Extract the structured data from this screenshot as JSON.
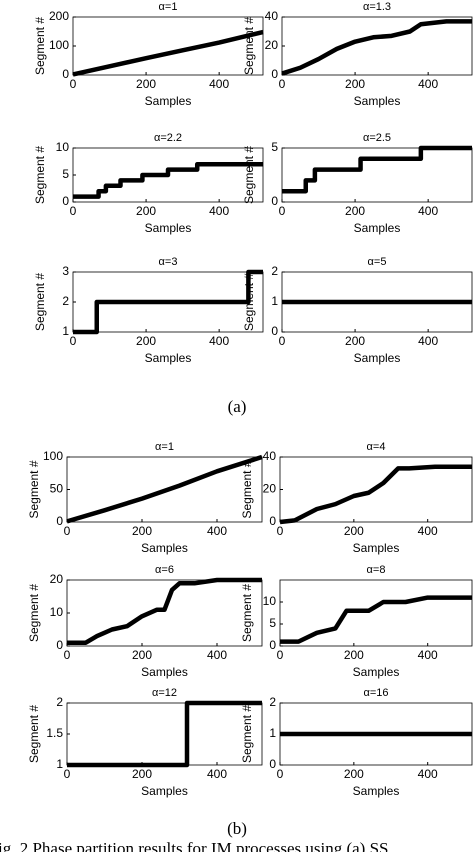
{
  "chart_data": [
    {
      "type": "line",
      "title": "α=1",
      "x_label": "Samples",
      "y_label": "Segment #",
      "xlim": [
        0,
        520
      ],
      "xticks": [
        0,
        200,
        400
      ],
      "ylim": [
        0,
        200
      ],
      "yticks": [
        0,
        100,
        200
      ],
      "color": "#000000",
      "x": [
        0,
        100,
        200,
        300,
        400,
        520
      ],
      "values": [
        2,
        30,
        58,
        85,
        112,
        148
      ]
    },
    {
      "type": "line",
      "title": "α=1.3",
      "x_label": "Samples",
      "y_label": "Segment #",
      "xlim": [
        0,
        520
      ],
      "xticks": [
        0,
        200,
        400
      ],
      "ylim": [
        0,
        40
      ],
      "yticks": [
        0,
        20,
        40
      ],
      "color": "#000000",
      "x": [
        0,
        50,
        100,
        150,
        200,
        250,
        300,
        350,
        380,
        450,
        520
      ],
      "values": [
        1,
        5,
        11,
        18,
        23,
        26,
        27,
        30,
        35,
        37,
        37
      ]
    },
    {
      "type": "line",
      "title": "α=2.2",
      "x_label": "Samples",
      "y_label": "Segment #",
      "xlim": [
        0,
        520
      ],
      "xticks": [
        0,
        200,
        400
      ],
      "ylim": [
        0,
        10
      ],
      "yticks": [
        0,
        5,
        10
      ],
      "color": "#000000",
      "x": [
        0,
        70,
        70,
        90,
        90,
        130,
        130,
        190,
        190,
        260,
        260,
        340,
        340,
        520
      ],
      "values": [
        1,
        1,
        2,
        2,
        3,
        3,
        4,
        4,
        5,
        5,
        6,
        6,
        7,
        7
      ]
    },
    {
      "type": "line",
      "title": "α=2.5",
      "x_label": "Samples",
      "y_label": "Segment #",
      "xlim": [
        0,
        520
      ],
      "xticks": [
        0,
        200,
        400
      ],
      "ylim": [
        0,
        5
      ],
      "yticks": [
        0,
        5
      ],
      "color": "#000000",
      "x": [
        0,
        65,
        65,
        90,
        90,
        215,
        215,
        380,
        380,
        520
      ],
      "values": [
        1,
        1,
        2,
        2,
        3,
        3,
        4,
        4,
        5,
        5
      ]
    },
    {
      "type": "line",
      "title": "α=3",
      "x_label": "Samples",
      "y_label": "Segment #",
      "xlim": [
        0,
        520
      ],
      "xticks": [
        0,
        200,
        400
      ],
      "ylim": [
        1,
        3
      ],
      "yticks": [
        1,
        2,
        3
      ],
      "color": "#000000",
      "x": [
        0,
        65,
        65,
        480,
        480,
        520
      ],
      "values": [
        1,
        1,
        2,
        2,
        3,
        3
      ]
    },
    {
      "type": "line",
      "title": "α=5",
      "x_label": "Samples",
      "y_label": "Segment #",
      "xlim": [
        0,
        520
      ],
      "xticks": [
        0,
        200,
        400
      ],
      "ylim": [
        0,
        2
      ],
      "yticks": [
        0,
        1,
        2
      ],
      "color": "#000000",
      "x": [
        0,
        520
      ],
      "values": [
        1,
        1
      ]
    },
    {
      "type": "line",
      "title": "α=1",
      "x_label": "Samples",
      "y_label": "Segment #",
      "xlim": [
        0,
        520
      ],
      "xticks": [
        0,
        200,
        400
      ],
      "ylim": [
        0,
        100
      ],
      "yticks": [
        0,
        50,
        100
      ],
      "color": "#000000",
      "x": [
        0,
        100,
        200,
        300,
        400,
        520
      ],
      "values": [
        1,
        18,
        36,
        56,
        78,
        100
      ]
    },
    {
      "type": "line",
      "title": "α=4",
      "x_label": "Samples",
      "y_label": "Segment #",
      "xlim": [
        0,
        520
      ],
      "xticks": [
        0,
        200,
        400
      ],
      "ylim": [
        0,
        40
      ],
      "yticks": [
        0,
        20,
        40
      ],
      "color": "#000000",
      "x": [
        0,
        40,
        100,
        150,
        200,
        240,
        280,
        320,
        350,
        420,
        520
      ],
      "values": [
        0,
        1,
        8,
        11,
        16,
        18,
        24,
        33,
        33,
        34,
        34
      ]
    },
    {
      "type": "line",
      "title": "α=6",
      "x_label": "Samples",
      "y_label": "Segment #",
      "xlim": [
        0,
        520
      ],
      "xticks": [
        0,
        200,
        400
      ],
      "ylim": [
        0,
        20
      ],
      "yticks": [
        0,
        10,
        20
      ],
      "color": "#000000",
      "x": [
        0,
        50,
        80,
        120,
        160,
        200,
        240,
        260,
        280,
        300,
        340,
        400,
        520
      ],
      "values": [
        1,
        1,
        3,
        5,
        6,
        9,
        11,
        11,
        17,
        19,
        19,
        20,
        20
      ]
    },
    {
      "type": "line",
      "title": "α=8",
      "x_label": "Samples",
      "y_label": "Segment #",
      "xlim": [
        0,
        520
      ],
      "xticks": [
        0,
        200,
        400
      ],
      "ylim": [
        0,
        15
      ],
      "yticks": [
        0,
        5,
        10
      ],
      "color": "#000000",
      "x": [
        0,
        50,
        100,
        150,
        180,
        240,
        280,
        340,
        400,
        520
      ],
      "values": [
        1,
        1,
        3,
        4,
        8,
        8,
        10,
        10,
        11,
        11
      ]
    },
    {
      "type": "line",
      "title": "α=12",
      "x_label": "Samples",
      "y_label": "Segment #",
      "xlim": [
        0,
        520
      ],
      "xticks": [
        0,
        200,
        400
      ],
      "ylim": [
        1,
        2
      ],
      "yticks": [
        1,
        1.5,
        2
      ],
      "color": "#000000",
      "x": [
        0,
        320,
        320,
        520
      ],
      "values": [
        1,
        1,
        2,
        2
      ]
    },
    {
      "type": "line",
      "title": "α=16",
      "x_label": "Samples",
      "y_label": "Segment #",
      "xlim": [
        0,
        520
      ],
      "xticks": [
        0,
        200,
        400
      ],
      "ylim": [
        0,
        2
      ],
      "yticks": [
        0,
        1,
        2
      ],
      "color": "#000000",
      "x": [
        0,
        520
      ],
      "values": [
        1,
        1
      ]
    }
  ],
  "labels": {
    "a": "(a)",
    "b": "(b)",
    "caption": "ig. 2 Phase partition results for IM processes using (a) SS"
  }
}
